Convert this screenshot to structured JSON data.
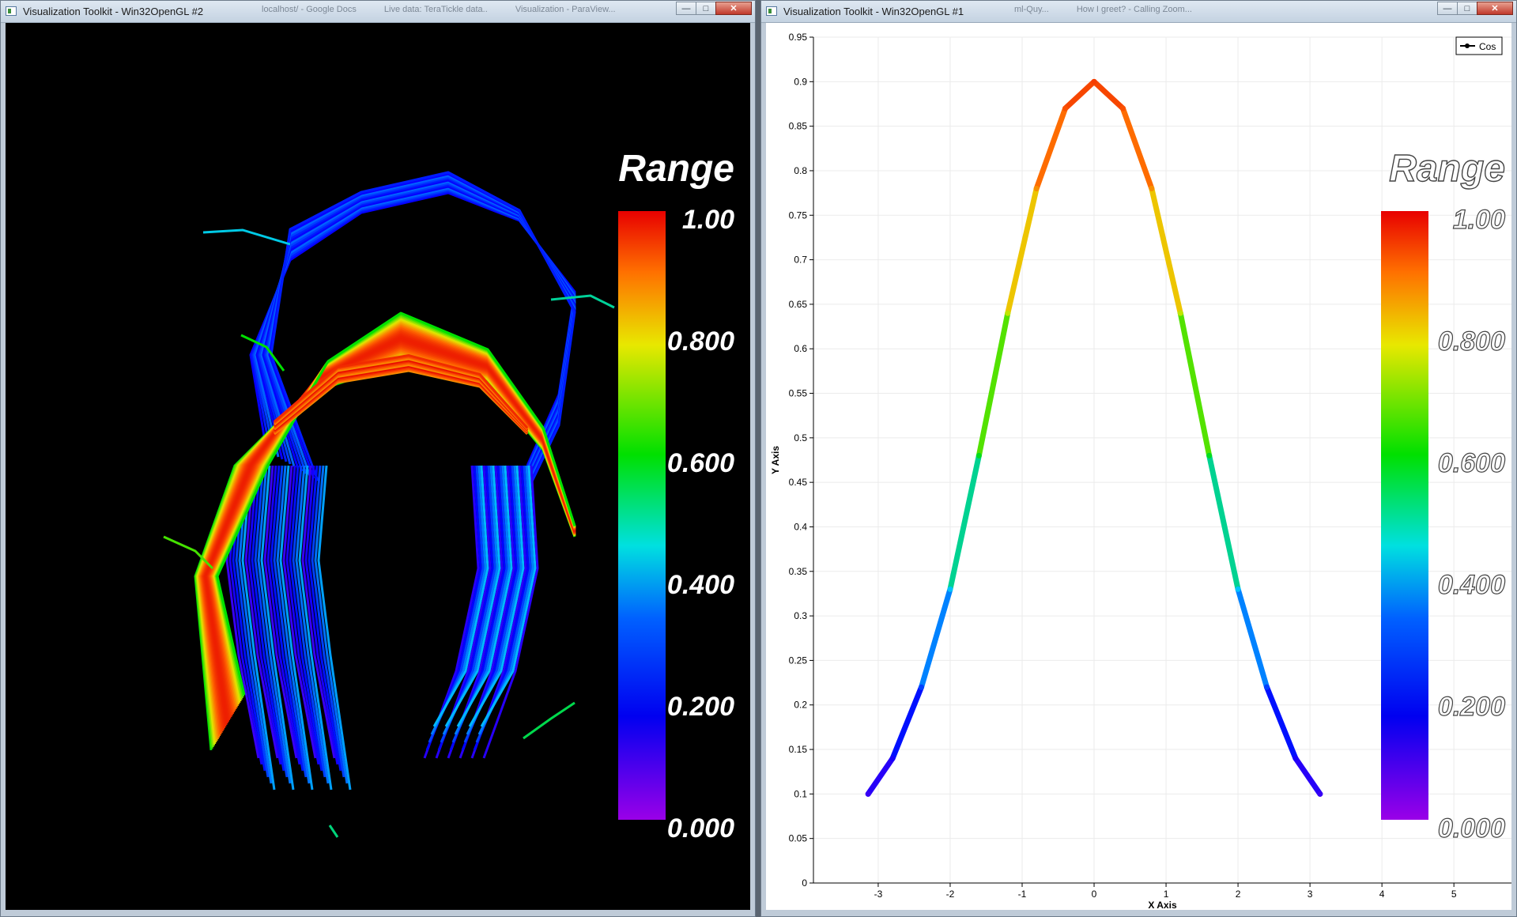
{
  "left_window": {
    "title": "Visualization Toolkit - Win32OpenGL #2",
    "background_tabs": [
      "localhost/ - Google Docs",
      "Live data: TeraTickle data..",
      "Visualization - ParaView..."
    ],
    "scalar_bar": {
      "title": "Range",
      "labels": [
        "1.00",
        "0.800",
        "0.600",
        "0.400",
        "0.200",
        "0.000"
      ]
    },
    "scene": "tractography-streamlines"
  },
  "right_window": {
    "title": "Visualization Toolkit - Win32OpenGL #1",
    "background_tabs": [
      "ml-Quy...",
      "How I greet? - Calling Zoom..."
    ],
    "scalar_bar": {
      "title": "Range",
      "labels": [
        "1.00",
        "0.800",
        "0.600",
        "0.400",
        "0.200",
        "0.000"
      ]
    }
  },
  "caption_buttons": {
    "minimize": "—",
    "maximize": "□",
    "close": "✕"
  },
  "colormap": [
    "#8a00e6",
    "#0000ff",
    "#00c8ff",
    "#00e000",
    "#e6e600",
    "#ff6600",
    "#e60000"
  ],
  "chart_data": {
    "type": "line",
    "title": "",
    "xlabel": "X Axis",
    "ylabel": "Y Axis",
    "xlim": [
      -3.9,
      5.8
    ],
    "ylim": [
      0,
      0.95
    ],
    "x_ticks": [
      "-3",
      "-2",
      "-1",
      "0",
      "1",
      "2",
      "3",
      "4",
      "5"
    ],
    "y_ticks": [
      "0",
      "0.05",
      "0.1",
      "0.15",
      "0.2",
      "0.25",
      "0.3",
      "0.35",
      "0.4",
      "0.45",
      "0.5",
      "0.55",
      "0.6",
      "0.65",
      "0.7",
      "0.75",
      "0.8",
      "0.85",
      "0.9",
      "0.95"
    ],
    "grid": true,
    "legend": {
      "position": "top-right",
      "entries": [
        "Cos"
      ]
    },
    "series": [
      {
        "name": "Cos",
        "color_by": "value",
        "x": [
          -3.14,
          -2.8,
          -2.4,
          -2.0,
          -1.6,
          -1.2,
          -0.8,
          -0.4,
          0.0,
          0.4,
          0.8,
          1.2,
          1.6,
          2.0,
          2.4,
          2.8,
          3.14
        ],
        "y": [
          0.1,
          0.14,
          0.22,
          0.33,
          0.48,
          0.64,
          0.78,
          0.87,
          0.9,
          0.87,
          0.78,
          0.64,
          0.48,
          0.33,
          0.22,
          0.14,
          0.1
        ]
      }
    ]
  }
}
